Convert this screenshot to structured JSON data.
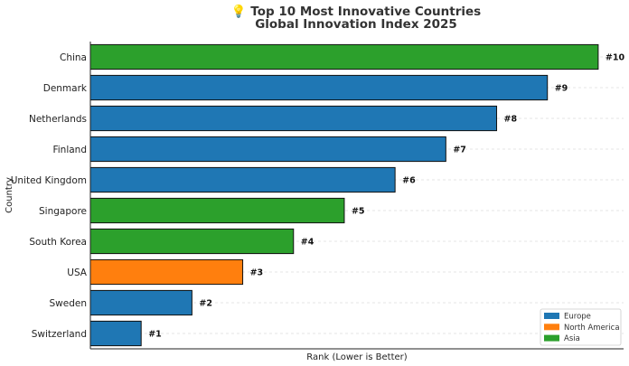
{
  "chart_data": {
    "type": "bar",
    "orientation": "horizontal",
    "title": "💡 Top 10 Most Innovative Countries",
    "subtitle": "Global Innovation Index 2025",
    "xlabel": "Rank (Lower is Better)",
    "ylabel": "Country",
    "categories": [
      "Switzerland",
      "Sweden",
      "USA",
      "South Korea",
      "Singapore",
      "United Kingdom",
      "Finland",
      "Netherlands",
      "Denmark",
      "China"
    ],
    "values": [
      1,
      2,
      3,
      4,
      5,
      6,
      7,
      8,
      9,
      10
    ],
    "regions": [
      "Europe",
      "Europe",
      "North America",
      "Asia",
      "Asia",
      "Europe",
      "Europe",
      "Europe",
      "Europe",
      "Asia"
    ],
    "data_labels": [
      "#1",
      "#2",
      "#3",
      "#4",
      "#5",
      "#6",
      "#7",
      "#8",
      "#9",
      "#10"
    ],
    "xlim": [
      0,
      10.5
    ],
    "grid": true,
    "legend_position": "bottom-right",
    "legend": [
      {
        "name": "Europe",
        "color": "#1f77b4"
      },
      {
        "name": "North America",
        "color": "#ff7f0e"
      },
      {
        "name": "Asia",
        "color": "#2ca02c"
      }
    ]
  }
}
